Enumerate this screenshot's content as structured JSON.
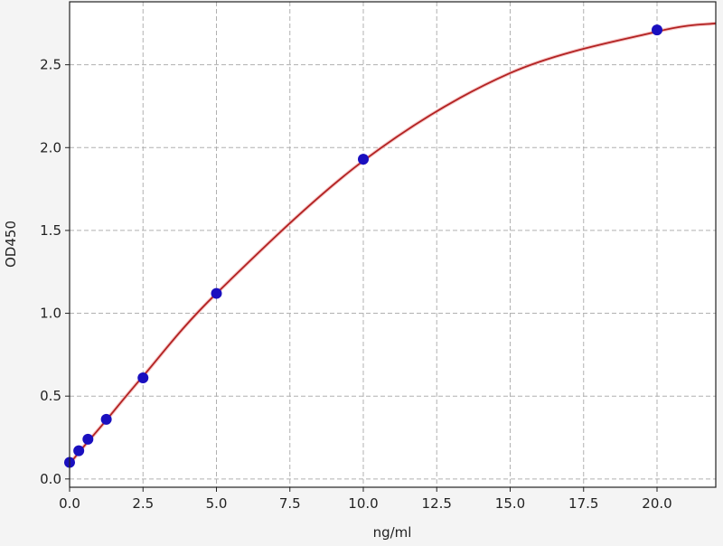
{
  "chart_data": {
    "type": "scatter",
    "title": "",
    "xlabel": "ng/ml",
    "ylabel": "OD450",
    "xlim": [
      0,
      22
    ],
    "ylim": [
      -0.05,
      2.88
    ],
    "xticks": [
      0.0,
      2.5,
      5.0,
      7.5,
      10.0,
      12.5,
      15.0,
      17.5,
      20.0
    ],
    "yticks": [
      0.0,
      0.5,
      1.0,
      1.5,
      2.0,
      2.5
    ],
    "grid": true,
    "series": [
      {
        "x": [
          0,
          0.3125,
          0.625,
          1.25,
          2.5,
          5,
          10,
          20
        ],
        "y": [
          0.1,
          0.17,
          0.24,
          0.36,
          0.61,
          1.12,
          1.93,
          2.71
        ]
      }
    ],
    "fit_curve": {
      "x": [
        0,
        0.3125,
        0.625,
        1.25,
        2.5,
        5,
        10,
        15,
        20,
        22
      ],
      "y": [
        0.09,
        0.16,
        0.225,
        0.355,
        0.62,
        1.12,
        1.92,
        2.45,
        2.7,
        2.75
      ]
    },
    "colors": {
      "points": "#1a0fbf",
      "curve": "#b22222",
      "grid": "#b0b0b0"
    }
  }
}
